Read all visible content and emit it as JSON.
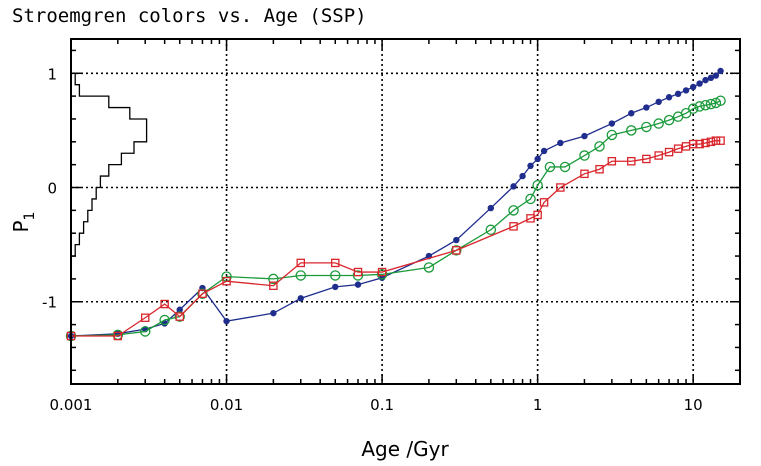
{
  "chart_data": {
    "type": "line",
    "title": "Stroemgren colors vs. Age (SSP)",
    "xlabel": "Age /Gyr",
    "ylabel": "P",
    "ylabel_subscript": "1",
    "xscale": "log",
    "xlim": [
      0.001,
      20
    ],
    "ylim": [
      -1.72,
      1.3
    ],
    "grid": true,
    "x_ticks": [
      0.001,
      0.01,
      0.1,
      1,
      10
    ],
    "x_tick_labels": [
      "0.001",
      "0.01",
      "0.1",
      "1",
      "10"
    ],
    "y_ticks": [
      -1,
      0,
      1
    ],
    "y_tick_labels": [
      "-1",
      "0",
      "1"
    ],
    "series": [
      {
        "color": "#1f2d8c",
        "marker": "filled-circle",
        "x": [
          0.001,
          0.002,
          0.003,
          0.004,
          0.005,
          0.007,
          0.01,
          0.02,
          0.03,
          0.05,
          0.07,
          0.1,
          0.2,
          0.3,
          0.5,
          0.7,
          0.8,
          0.9,
          1.0,
          1.1,
          1.4,
          2,
          3,
          4,
          5,
          6,
          7,
          8,
          9,
          10,
          11,
          12,
          13,
          14,
          15
        ],
        "y": [
          -1.3,
          -1.28,
          -1.24,
          -1.19,
          -1.07,
          -0.88,
          -1.17,
          -1.1,
          -0.97,
          -0.87,
          -0.85,
          -0.79,
          -0.6,
          -0.46,
          -0.18,
          0.01,
          0.1,
          0.19,
          0.25,
          0.32,
          0.39,
          0.45,
          0.56,
          0.65,
          0.7,
          0.75,
          0.79,
          0.82,
          0.85,
          0.88,
          0.91,
          0.94,
          0.96,
          0.98,
          1.02
        ]
      },
      {
        "color": "#1a9a3a",
        "marker": "open-circle",
        "x": [
          0.001,
          0.002,
          0.003,
          0.004,
          0.005,
          0.007,
          0.01,
          0.02,
          0.03,
          0.05,
          0.07,
          0.1,
          0.2,
          0.3,
          0.5,
          0.7,
          0.9,
          1.0,
          1.2,
          1.5,
          2,
          2.5,
          3,
          4,
          5,
          6,
          7,
          8,
          9,
          10,
          11,
          12,
          13,
          14,
          15
        ],
        "y": [
          -1.3,
          -1.29,
          -1.26,
          -1.16,
          -1.13,
          -0.93,
          -0.78,
          -0.8,
          -0.77,
          -0.77,
          -0.77,
          -0.76,
          -0.7,
          -0.55,
          -0.37,
          -0.2,
          -0.1,
          0.02,
          0.18,
          0.18,
          0.28,
          0.36,
          0.46,
          0.5,
          0.53,
          0.56,
          0.59,
          0.62,
          0.65,
          0.69,
          0.71,
          0.72,
          0.73,
          0.74,
          0.76
        ]
      },
      {
        "color": "#d9262c",
        "marker": "open-square",
        "x": [
          0.001,
          0.002,
          0.003,
          0.004,
          0.005,
          0.007,
          0.01,
          0.02,
          0.03,
          0.05,
          0.07,
          0.1,
          0.3,
          0.7,
          0.9,
          1.0,
          1.1,
          1.4,
          2,
          2.5,
          3,
          4,
          5,
          6,
          7,
          8,
          9,
          10,
          11,
          12,
          13,
          14,
          15
        ],
        "y": [
          -1.3,
          -1.3,
          -1.14,
          -1.02,
          -1.13,
          -0.93,
          -0.82,
          -0.86,
          -0.66,
          -0.66,
          -0.74,
          -0.74,
          -0.55,
          -0.34,
          -0.27,
          -0.24,
          -0.13,
          0.0,
          0.12,
          0.16,
          0.23,
          0.23,
          0.25,
          0.28,
          0.31,
          0.34,
          0.36,
          0.38,
          0.38,
          0.39,
          0.4,
          0.41,
          0.41
        ]
      }
    ],
    "inset_histogram": {
      "bins_y": [
        -0.6,
        -0.5,
        -0.4,
        -0.3,
        -0.2,
        -0.1,
        0.0,
        0.1,
        0.2,
        0.3,
        0.4,
        0.5,
        0.6,
        0.7,
        0.8,
        0.9,
        1.0
      ],
      "counts": [
        1,
        2,
        3,
        4,
        5,
        6,
        7,
        9,
        12,
        15,
        18,
        18,
        14,
        9,
        2,
        1
      ]
    }
  }
}
